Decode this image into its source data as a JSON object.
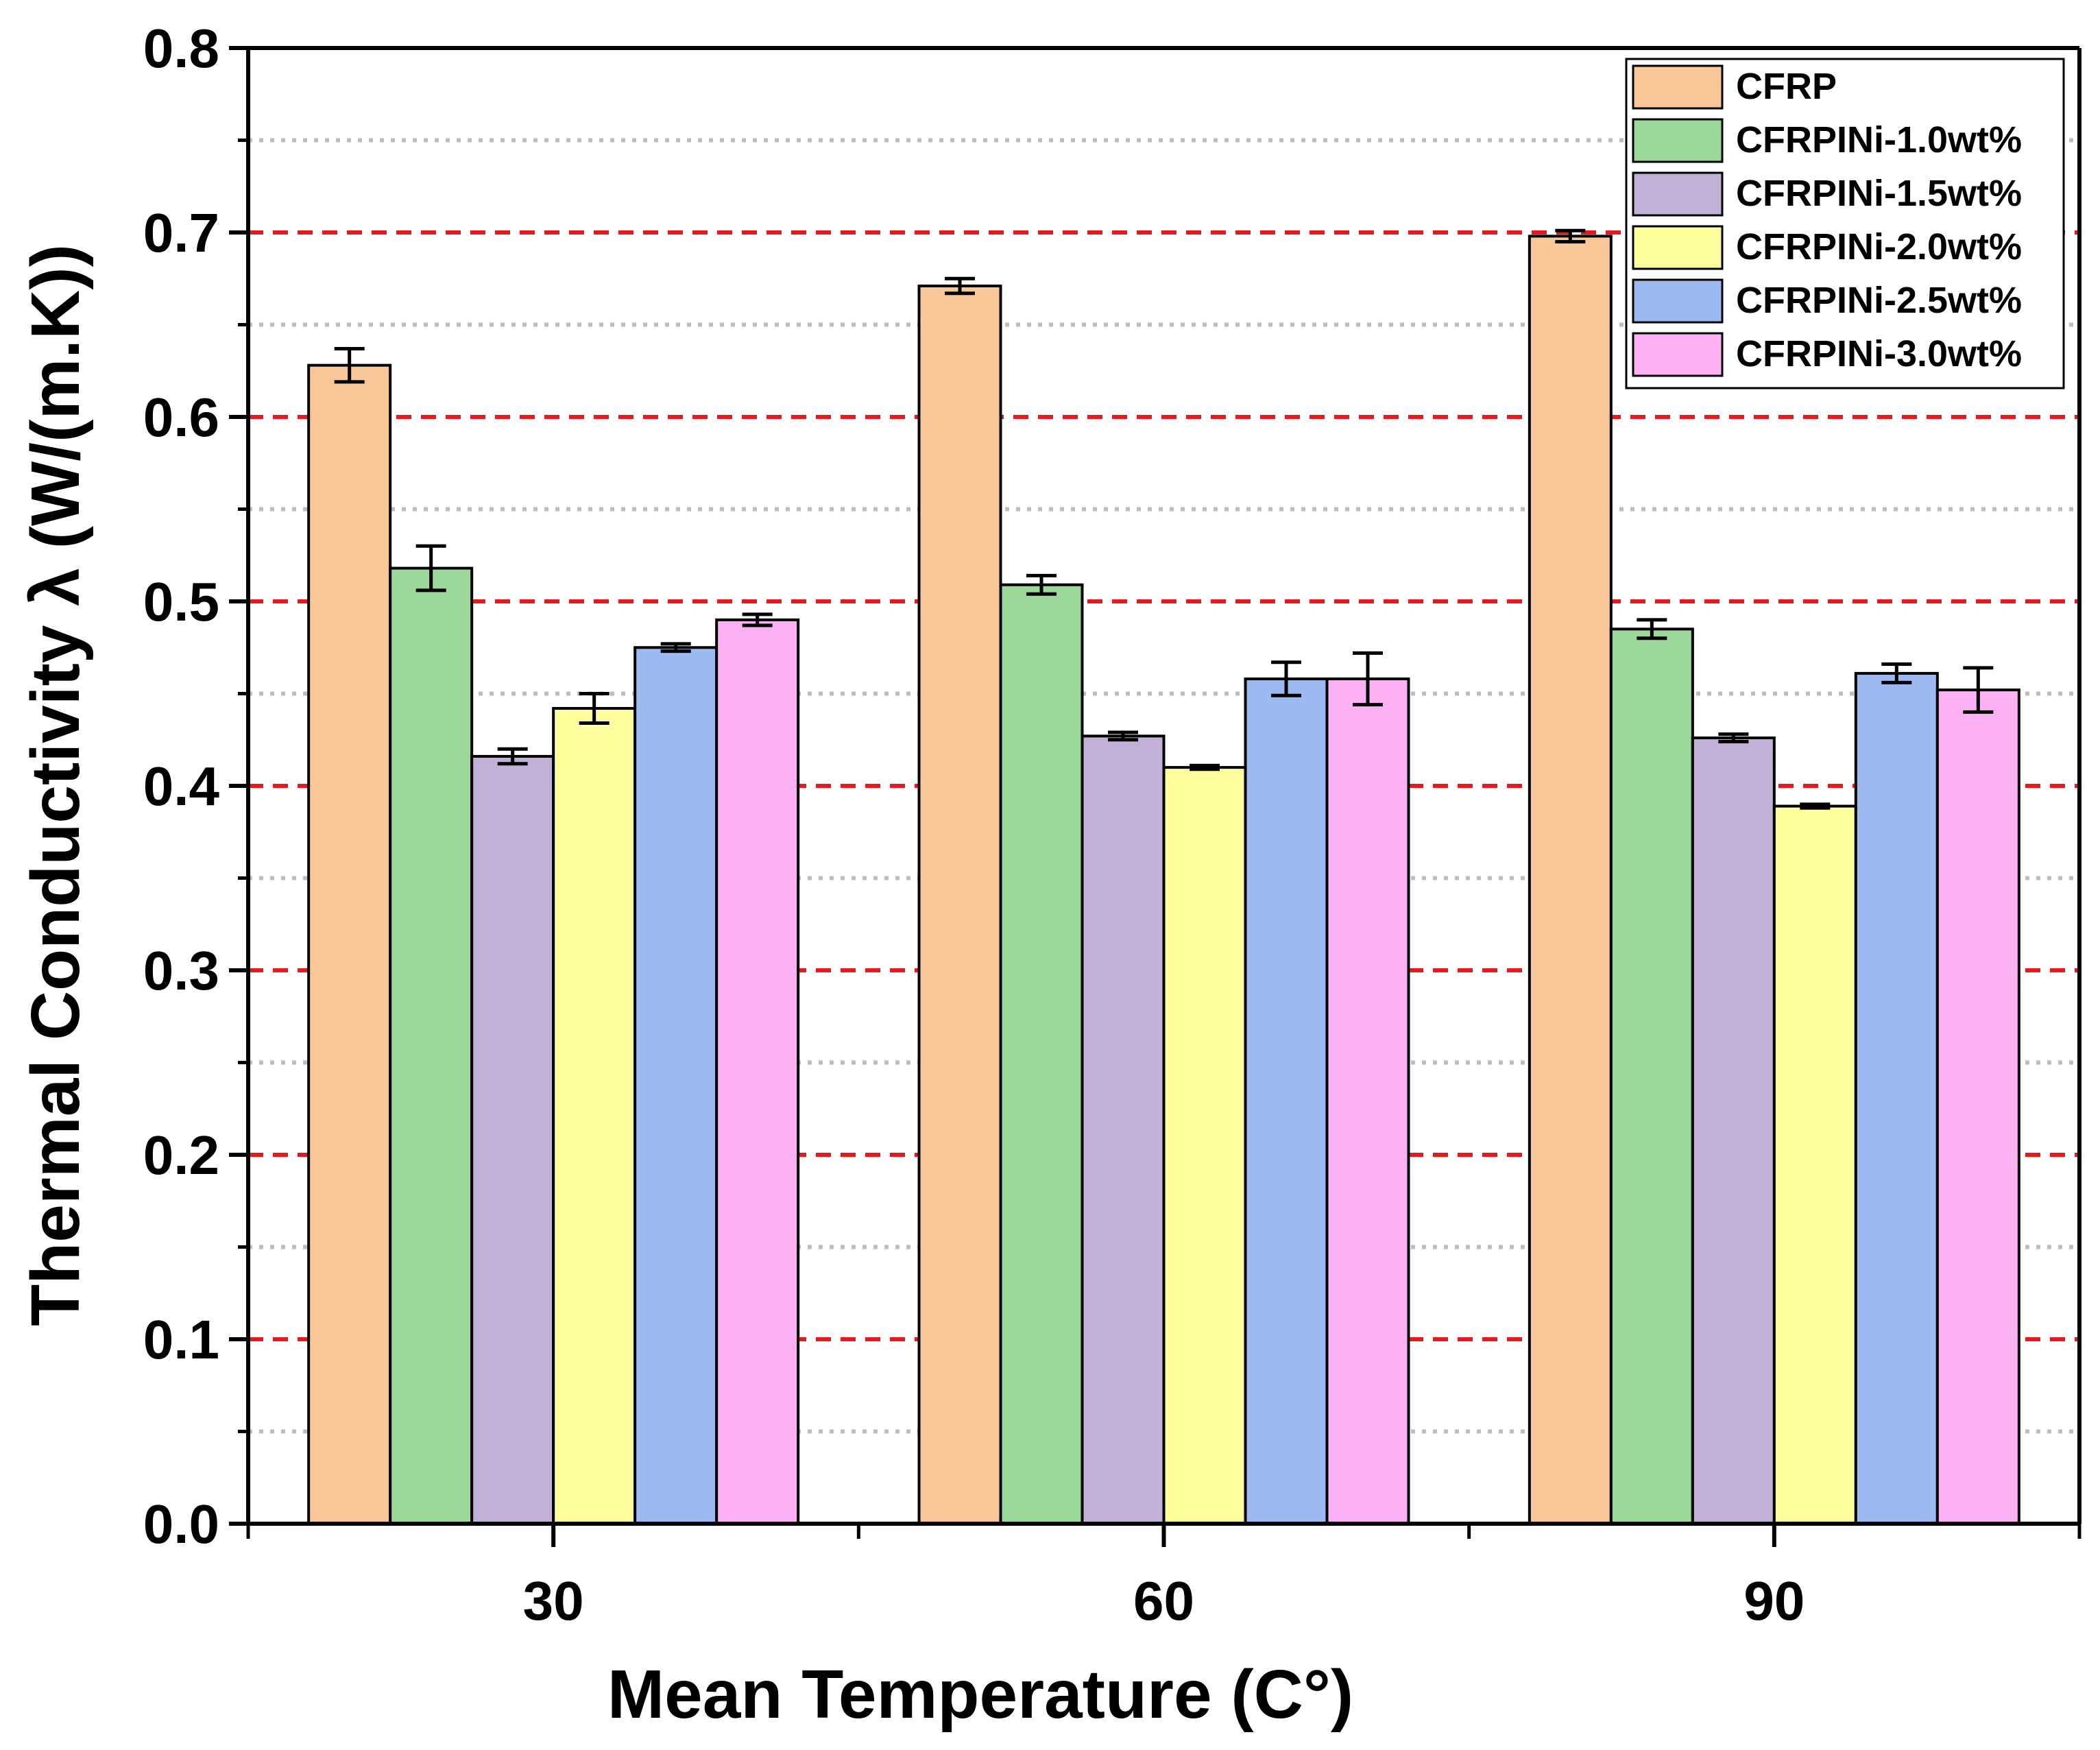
{
  "chart_data": {
    "type": "bar",
    "xlabel": "Mean Temperature (C°)",
    "ylabel": "Thermal Conductivity λ (W/(m.K))",
    "categories": [
      "30",
      "60",
      "90"
    ],
    "ylim": [
      0,
      0.8
    ],
    "yticks": [
      "0.0",
      "0.1",
      "0.2",
      "0.3",
      "0.4",
      "0.5",
      "0.6",
      "0.7",
      "0.8"
    ],
    "grid": {
      "major": {
        "style": "dashed",
        "color": "#e8191e"
      },
      "minor": {
        "style": "dotted",
        "color": "#bdbdbd"
      }
    },
    "legend_position": "top-right",
    "series": [
      {
        "name": "CFRP",
        "color": "#f9c797",
        "values": [
          0.628,
          0.671,
          0.698
        ],
        "errors": [
          0.009,
          0.004,
          0.003
        ]
      },
      {
        "name": "CFRPINi-1.0wt%",
        "color": "#9dd89b",
        "values": [
          0.518,
          0.509,
          0.485
        ],
        "errors": [
          0.012,
          0.005,
          0.005
        ]
      },
      {
        "name": "CFRPINi-1.5wt%",
        "color": "#c2b1d7",
        "values": [
          0.416,
          0.427,
          0.426
        ],
        "errors": [
          0.004,
          0.002,
          0.002
        ]
      },
      {
        "name": "CFRPINi-2.0wt%",
        "color": "#fefe9d",
        "values": [
          0.442,
          0.41,
          0.389
        ],
        "errors": [
          0.008,
          0.001,
          0.001
        ]
      },
      {
        "name": "CFRPINi-2.5wt%",
        "color": "#9cbaf0",
        "values": [
          0.475,
          0.458,
          0.461
        ],
        "errors": [
          0.002,
          0.009,
          0.005
        ]
      },
      {
        "name": "CFRPINi-3.0wt%",
        "color": "#fbb1f3",
        "values": [
          0.49,
          0.458,
          0.452
        ],
        "errors": [
          0.003,
          0.014,
          0.012
        ]
      }
    ]
  }
}
